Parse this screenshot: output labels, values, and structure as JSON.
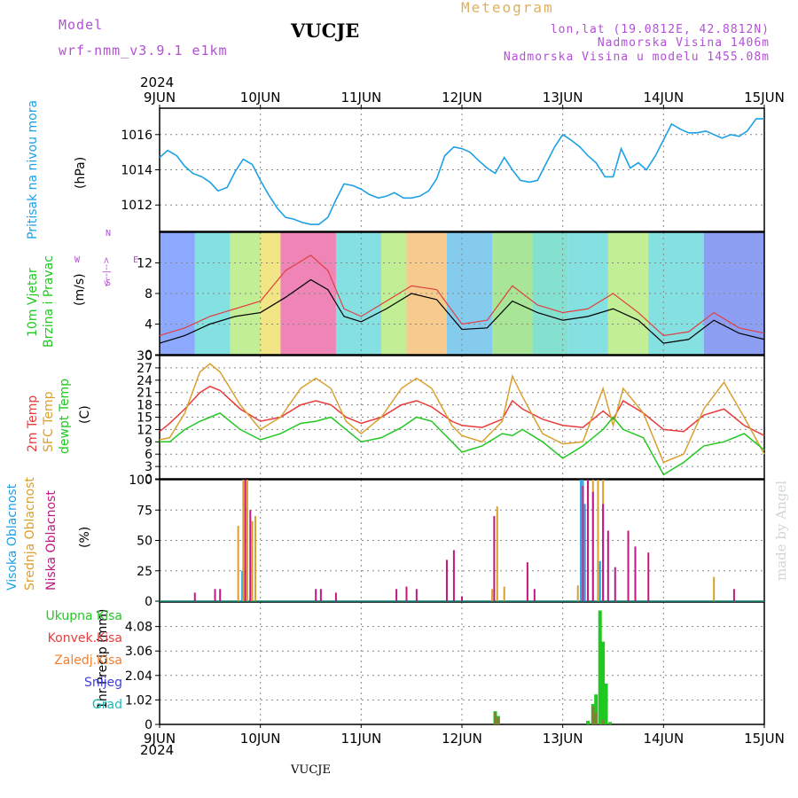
{
  "header": {
    "model_label": "Model",
    "model_name": "wrf-nmm_v3.9.1  e1km",
    "station": "VUCJE",
    "meteogram": "Meteogram",
    "coords": "lon,lat (19.0812E, 42.8812N)",
    "elevation": "Nadmorska Visina 1406m",
    "model_elevation": "Nadmorska Visina u modelu 1455.08m",
    "year": "2024",
    "footer_station": "VUCJE",
    "watermark": "made by Angel"
  },
  "colors": {
    "pressure": "#1ea0e6",
    "t2m": "#e83c3c",
    "sfc": "#d9a030",
    "dewpt": "#22c822",
    "wind_speed": "#000000",
    "gust": "#e04040",
    "cloud_high": "#1ea0e6",
    "cloud_mid": "#d9a030",
    "cloud_low": "#c01880",
    "precip_total": "#22c822",
    "precip_conv": "#e83c3c",
    "precip_frz": "#f08030",
    "precip_snow": "#4040e0",
    "precip_grad": "#20b8b8"
  },
  "panel_labels": {
    "pressure": "Pritisak na nivou mora",
    "pressure_unit": "(hPa)",
    "wind_line1": "10m Vjetar",
    "wind_line2": "Brzina i Pravac",
    "wind_unit": "(m/s)",
    "compass_n": "N",
    "compass_s": "S",
    "compass_w": "W",
    "compass_e": "E",
    "compass_arrows": "<--|-->",
    "temp_2m": "2m Temp",
    "temp_sfc": "SFC Temp",
    "temp_dew": "dewpt Temp",
    "temp_unit": "(C)",
    "cloud_high": "Visoka Oblacnost",
    "cloud_mid": "Srednja Oblacnost",
    "cloud_low": "Niska Oblacnost",
    "cloud_unit": "(%)",
    "precip_unit": "1hr Precip (mm)",
    "precip_total": "Ukupna Kisa",
    "precip_conv": "Konvek.Kisa",
    "precip_frz": "Zaledj.Kisa",
    "precip_snow": "Snijeg",
    "precip_grad": "Grad"
  },
  "chart_data": [
    {
      "type": "line",
      "name": "pressure",
      "x_ticks": [
        "9JUN",
        "10JUN",
        "11JUN",
        "12JUN",
        "13JUN",
        "14JUN",
        "15JUN"
      ],
      "ylim": [
        1010.5,
        1017.5
      ],
      "y_ticks": [
        1012,
        1014,
        1016
      ],
      "grid": true,
      "x": [
        0,
        0.08,
        0.17,
        0.25,
        0.33,
        0.42,
        0.5,
        0.58,
        0.67,
        0.75,
        0.83,
        0.92,
        1.0,
        1.08,
        1.17,
        1.25,
        1.33,
        1.42,
        1.5,
        1.58,
        1.67,
        1.75,
        1.83,
        1.92,
        2.0,
        2.08,
        2.17,
        2.25,
        2.33,
        2.42,
        2.5,
        2.58,
        2.67,
        2.75,
        2.83,
        2.92,
        3.0,
        3.08,
        3.17,
        3.25,
        3.33,
        3.42,
        3.5,
        3.58,
        3.67,
        3.75,
        3.83,
        3.92,
        4.0,
        4.08,
        4.17,
        4.25,
        4.33,
        4.42,
        4.5,
        4.58,
        4.67,
        4.75,
        4.83,
        4.92,
        5.0,
        5.08,
        5.17,
        5.25,
        5.33,
        5.42,
        5.5,
        5.58,
        5.67,
        5.75,
        5.83,
        5.92,
        6.0
      ],
      "values": [
        1014.7,
        1015.1,
        1014.8,
        1014.2,
        1013.8,
        1013.6,
        1013.3,
        1012.8,
        1013.0,
        1013.9,
        1014.6,
        1014.3,
        1013.4,
        1012.6,
        1011.8,
        1011.3,
        1011.2,
        1011.0,
        1010.9,
        1010.9,
        1011.3,
        1012.3,
        1013.2,
        1013.1,
        1012.9,
        1012.6,
        1012.4,
        1012.5,
        1012.7,
        1012.4,
        1012.4,
        1012.5,
        1012.8,
        1013.5,
        1014.8,
        1015.3,
        1015.2,
        1015.0,
        1014.5,
        1014.1,
        1013.8,
        1014.7,
        1014.0,
        1013.4,
        1013.3,
        1013.4,
        1014.3,
        1015.3,
        1016.0,
        1015.7,
        1015.3,
        1014.8,
        1014.4,
        1013.6,
        1013.6,
        1015.2,
        1014.1,
        1014.4,
        1014.0,
        1014.8,
        1015.7,
        1016.6,
        1016.3,
        1016.1,
        1016.1,
        1016.2,
        1016.0,
        1015.8,
        1016.0,
        1015.9,
        1016.2,
        1016.9,
        1016.9
      ]
    },
    {
      "type": "line",
      "name": "wind",
      "ylim": [
        0,
        16
      ],
      "y_ticks": [
        0,
        4,
        8,
        12
      ],
      "grid": true,
      "series": [
        {
          "name": "speed",
          "x": [
            0,
            0.25,
            0.5,
            0.75,
            1.0,
            1.25,
            1.5,
            1.67,
            1.83,
            2.0,
            2.25,
            2.5,
            2.75,
            3.0,
            3.25,
            3.5,
            3.75,
            4.0,
            4.25,
            4.5,
            4.75,
            5.0,
            5.25,
            5.5,
            5.75,
            6.0
          ],
          "values": [
            1.5,
            2.5,
            4.0,
            5.0,
            5.5,
            7.5,
            9.8,
            8.5,
            5.0,
            4.3,
            6.0,
            8.0,
            7.2,
            3.3,
            3.5,
            7.0,
            5.5,
            4.5,
            5.0,
            6.0,
            4.5,
            1.5,
            2.0,
            4.5,
            2.8,
            2.0
          ]
        },
        {
          "name": "gust",
          "x": [
            0,
            0.25,
            0.5,
            0.75,
            1.0,
            1.25,
            1.5,
            1.67,
            1.83,
            2.0,
            2.25,
            2.5,
            2.75,
            3.0,
            3.25,
            3.5,
            3.75,
            4.0,
            4.25,
            4.5,
            4.75,
            5.0,
            5.25,
            5.5,
            5.75,
            6.0
          ],
          "values": [
            2.5,
            3.5,
            5.0,
            6.0,
            7.0,
            11.0,
            13.0,
            11.0,
            6.0,
            5.0,
            7.0,
            9.0,
            8.5,
            4.0,
            4.5,
            9.0,
            6.5,
            5.5,
            6.0,
            8.0,
            5.5,
            2.5,
            3.0,
            5.5,
            3.5,
            2.8
          ]
        }
      ]
    },
    {
      "type": "line",
      "name": "temperature",
      "ylim": [
        0,
        30
      ],
      "y_ticks": [
        0,
        3,
        6,
        9,
        12,
        15,
        18,
        21,
        24,
        27,
        30
      ],
      "grid": true,
      "series": [
        {
          "name": "2m",
          "x": [
            0,
            0.1,
            0.25,
            0.4,
            0.5,
            0.6,
            0.8,
            1.0,
            1.2,
            1.4,
            1.55,
            1.7,
            1.85,
            2.0,
            2.2,
            2.4,
            2.55,
            2.7,
            2.9,
            3.0,
            3.2,
            3.4,
            3.5,
            3.6,
            3.8,
            4.0,
            4.2,
            4.4,
            4.5,
            4.6,
            4.8,
            5.0,
            5.2,
            5.4,
            5.6,
            5.8,
            6.0
          ],
          "values": [
            11.5,
            13.5,
            17,
            21,
            22.5,
            21.5,
            17,
            14,
            15,
            18,
            19,
            18,
            15,
            13.5,
            15,
            18,
            19,
            17.5,
            14,
            13,
            12.5,
            14.5,
            19,
            17,
            14.5,
            13,
            12.5,
            16.5,
            14.5,
            19,
            16,
            12,
            11.5,
            15.5,
            17,
            13,
            10.5
          ]
        },
        {
          "name": "SFC",
          "x": [
            0,
            0.1,
            0.25,
            0.4,
            0.5,
            0.6,
            0.8,
            1.0,
            1.2,
            1.4,
            1.55,
            1.7,
            1.85,
            2.0,
            2.2,
            2.4,
            2.55,
            2.7,
            2.9,
            3.0,
            3.2,
            3.4,
            3.5,
            3.6,
            3.8,
            4.0,
            4.2,
            4.4,
            4.5,
            4.6,
            4.8,
            5.0,
            5.2,
            5.4,
            5.6,
            5.8,
            6.0
          ],
          "values": [
            9.5,
            10,
            16,
            26,
            28,
            26,
            18,
            12,
            15,
            22,
            24.5,
            22,
            14,
            11,
            15,
            22,
            24.5,
            22,
            13,
            10.5,
            9,
            14,
            25,
            20,
            11,
            8.5,
            9,
            22,
            13,
            22,
            16,
            4,
            6,
            17,
            23.5,
            15,
            6
          ]
        },
        {
          "name": "dewpt",
          "x": [
            0,
            0.1,
            0.25,
            0.4,
            0.5,
            0.6,
            0.8,
            1.0,
            1.2,
            1.4,
            1.55,
            1.7,
            1.85,
            2.0,
            2.2,
            2.4,
            2.55,
            2.7,
            2.9,
            3.0,
            3.2,
            3.4,
            3.5,
            3.6,
            3.8,
            4.0,
            4.2,
            4.4,
            4.5,
            4.6,
            4.8,
            5.0,
            5.2,
            5.4,
            5.6,
            5.8,
            6.0
          ],
          "values": [
            9,
            9,
            12,
            14,
            15,
            16,
            12,
            9.5,
            11,
            13.5,
            14,
            15,
            12,
            9,
            10,
            12.5,
            15,
            14,
            9,
            6.5,
            8,
            11,
            10.5,
            12,
            9,
            5,
            8,
            12,
            15,
            12,
            10,
            1,
            4,
            8,
            9,
            11,
            7
          ]
        }
      ]
    },
    {
      "type": "bar",
      "name": "cloud_cover",
      "ylim": [
        0,
        100
      ],
      "y_ticks": [
        0,
        25,
        50,
        75,
        100
      ],
      "grid": true,
      "series": [
        {
          "name": "high",
          "x": [
            0.82,
            0.85,
            4.18,
            4.2,
            4.22,
            4.35,
            4.37
          ],
          "values": [
            25,
            25,
            100,
            100,
            80,
            33,
            33
          ]
        },
        {
          "name": "mid",
          "x": [
            0.78,
            0.83,
            0.87,
            0.92,
            0.95,
            3.3,
            3.35,
            3.42,
            4.15,
            4.25,
            4.3,
            4.35,
            4.4,
            5.5
          ],
          "values": [
            62,
            100,
            100,
            66,
            70,
            10,
            78,
            12,
            13,
            100,
            100,
            100,
            100,
            20
          ]
        },
        {
          "name": "low",
          "x": [
            0.35,
            0.55,
            0.6,
            0.85,
            0.9,
            1.55,
            1.6,
            1.75,
            2.35,
            2.45,
            2.55,
            2.85,
            2.92,
            3.0,
            3.32,
            3.65,
            3.72,
            4.2,
            4.25,
            4.3,
            4.4,
            4.45,
            4.52,
            4.65,
            4.72,
            4.85,
            5.7
          ],
          "values": [
            7,
            10,
            10,
            100,
            75,
            10,
            10,
            7,
            10,
            12,
            10,
            34,
            42,
            4,
            70,
            32,
            10,
            95,
            100,
            90,
            80,
            58,
            28,
            58,
            45,
            40,
            10
          ]
        }
      ]
    },
    {
      "type": "bar",
      "name": "precipitation",
      "x_ticks": [
        "9JUN",
        "10JUN",
        "11JUN",
        "12JUN",
        "13JUN",
        "14JUN",
        "15JUN"
      ],
      "ylim": [
        0,
        5.1
      ],
      "y_ticks": [
        0,
        1.02,
        2.04,
        3.06,
        4.08
      ],
      "grid": true,
      "series": [
        {
          "name": "total",
          "x": [
            3.33,
            3.36,
            4.25,
            4.3,
            4.33,
            4.37,
            4.4,
            4.43,
            4.47
          ],
          "values": [
            0.55,
            0.35,
            0.15,
            0.85,
            1.25,
            4.75,
            3.45,
            1.7,
            0.1
          ]
        },
        {
          "name": "conv",
          "x": [
            3.33,
            3.36,
            4.3,
            4.33,
            4.4
          ],
          "values": [
            0.5,
            0.3,
            0.75,
            0.5,
            0.2
          ]
        }
      ]
    }
  ]
}
